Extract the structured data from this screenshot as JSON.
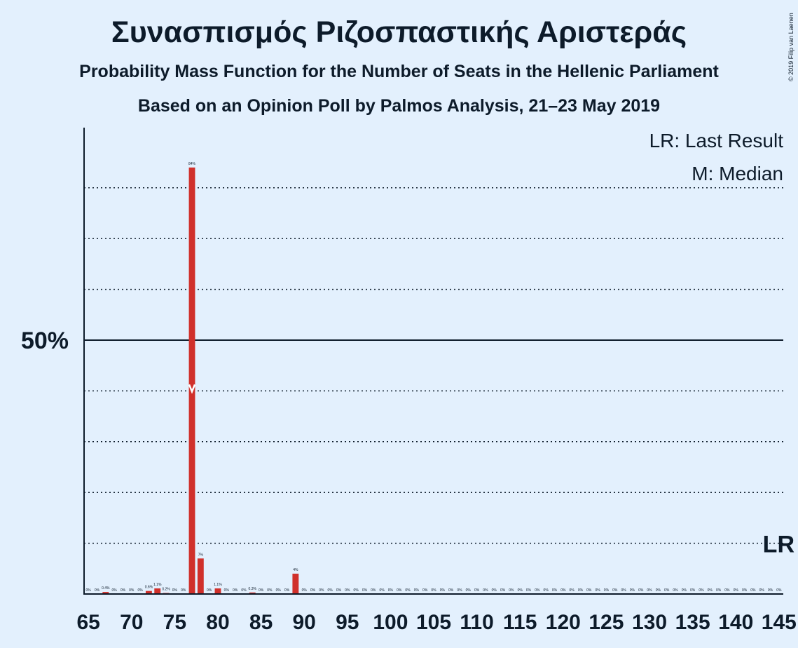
{
  "header": {
    "title": "Συνασπισμός Ριζοσπαστικής Αριστεράς",
    "subtitle": "Probability Mass Function for the Number of Seats in the Hellenic Parliament",
    "subtitle2": "Based on an Opinion Poll by Palmos Analysis, 21–23 May 2019",
    "copyright": "© 2019 Filip van Laenen"
  },
  "legend": {
    "last_result": "LR: Last Result",
    "median": "M: Median"
  },
  "markers": {
    "last_result_label": "LR",
    "last_result_seats": 145,
    "median_seats": 77
  },
  "colors": {
    "bar": "#d0302b",
    "background": "#e3f0fd",
    "axis": "#0d1b2a"
  },
  "chart_data": {
    "type": "bar",
    "title": "Συνασπισμός Ριζοσπαστικής Αριστεράς",
    "xlabel": "",
    "ylabel": "",
    "xlim": [
      65,
      145
    ],
    "ylim": [
      0,
      91
    ],
    "y_tick_label": "50%",
    "y_tick_value": 50,
    "x_ticks": [
      65,
      70,
      75,
      80,
      85,
      90,
      95,
      100,
      105,
      110,
      115,
      120,
      125,
      130,
      135,
      140,
      145
    ],
    "grid": "dotted at 10% steps, solid at 50%",
    "seats": [
      65,
      66,
      67,
      68,
      69,
      70,
      71,
      72,
      73,
      74,
      75,
      76,
      77,
      78,
      79,
      80,
      81,
      82,
      83,
      84,
      85,
      86,
      87,
      88,
      89,
      90,
      91,
      92,
      93,
      94,
      95,
      96,
      97,
      98,
      99,
      100,
      101,
      102,
      103,
      104,
      105,
      106,
      107,
      108,
      109,
      110,
      111,
      112,
      113,
      114,
      115,
      116,
      117,
      118,
      119,
      120,
      121,
      122,
      123,
      124,
      125,
      126,
      127,
      128,
      129,
      130,
      131,
      132,
      133,
      134,
      135,
      136,
      137,
      138,
      139,
      140,
      141,
      142,
      143,
      144,
      145
    ],
    "values": [
      0,
      0,
      0.4,
      0,
      0,
      0,
      0,
      0.6,
      1.1,
      0.2,
      0,
      0,
      84,
      7,
      0,
      1.1,
      0,
      0,
      0,
      0.3,
      0,
      0,
      0,
      0,
      4,
      0,
      0,
      0,
      0,
      0,
      0,
      0,
      0,
      0,
      0,
      0,
      0,
      0,
      0,
      0,
      0,
      0,
      0,
      0,
      0,
      0,
      0,
      0,
      0,
      0,
      0,
      0,
      0,
      0,
      0,
      0,
      0,
      0,
      0,
      0,
      0,
      0,
      0,
      0,
      0,
      0,
      0,
      0,
      0,
      0,
      0,
      0,
      0,
      0,
      0,
      0,
      0,
      0,
      0,
      0,
      0
    ],
    "labels": [
      "0%",
      "0%",
      "0.4%",
      "0%",
      "0%",
      "0%",
      "0%",
      "0.6%",
      "1.1%",
      "0.2%",
      "0%",
      "0%",
      "84%",
      "7%",
      "0%",
      "1.1%",
      "0%",
      "0%",
      "0%",
      "0.3%",
      "0%",
      "0%",
      "0%",
      "0%",
      "4%",
      "0%",
      "0%",
      "0%",
      "0%",
      "0%",
      "0%",
      "0%",
      "0%",
      "0%",
      "0%",
      "0%",
      "0%",
      "0%",
      "0%",
      "0%",
      "0%",
      "0%",
      "0%",
      "0%",
      "0%",
      "0%",
      "0%",
      "0%",
      "0%",
      "0%",
      "0%",
      "0%",
      "0%",
      "0%",
      "0%",
      "0%",
      "0%",
      "0%",
      "0%",
      "0%",
      "0%",
      "0%",
      "0%",
      "0%",
      "0%",
      "0%",
      "0%",
      "0%",
      "0%",
      "0%",
      "0%",
      "0%",
      "0%",
      "0%",
      "0%",
      "0%",
      "0%",
      "0%",
      "0%",
      "0%",
      "0%"
    ]
  }
}
